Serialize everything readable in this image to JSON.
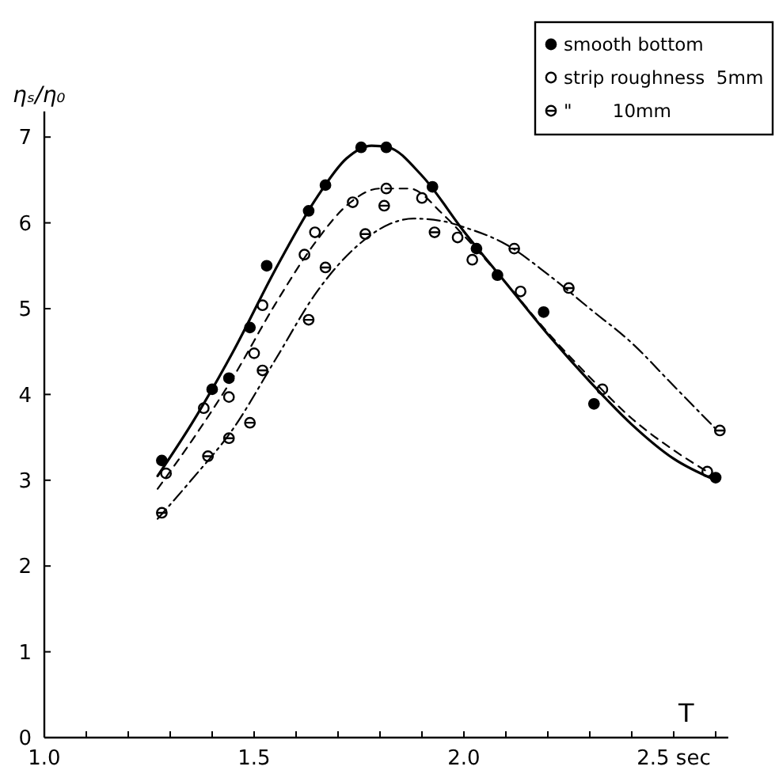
{
  "chart_data": {
    "type": "scatter",
    "ylabel": "ηₛ/η₀",
    "xlabel": "T",
    "xlim": [
      1.0,
      2.63
    ],
    "ylim": [
      0,
      7.3
    ],
    "xticks": [
      {
        "value": 1.0,
        "label": "1.0"
      },
      {
        "value": 1.1,
        "label": null
      },
      {
        "value": 1.2,
        "label": null
      },
      {
        "value": 1.3,
        "label": null
      },
      {
        "value": 1.4,
        "label": null
      },
      {
        "value": 1.5,
        "label": "1.5"
      },
      {
        "value": 1.6,
        "label": null
      },
      {
        "value": 1.7,
        "label": null
      },
      {
        "value": 1.8,
        "label": null
      },
      {
        "value": 1.9,
        "label": null
      },
      {
        "value": 2.0,
        "label": "2.0"
      },
      {
        "value": 2.1,
        "label": null
      },
      {
        "value": 2.2,
        "label": null
      },
      {
        "value": 2.3,
        "label": null
      },
      {
        "value": 2.4,
        "label": null
      },
      {
        "value": 2.5,
        "label": "2.5 sec"
      },
      {
        "value": 2.6,
        "label": null
      }
    ],
    "yticks": [
      0,
      1,
      2,
      3,
      4,
      5,
      6,
      7
    ],
    "legend": "top right",
    "marker": "circle",
    "series": [
      {
        "name": "smooth bottom",
        "color": "#000000",
        "x": [
          1.28,
          1.4,
          1.44,
          1.49,
          1.53,
          1.63,
          1.67,
          1.755,
          1.815,
          1.925,
          2.03,
          2.08,
          2.19,
          2.31,
          2.6
        ],
        "values": [
          3.23,
          4.06,
          4.19,
          4.78,
          5.5,
          6.14,
          6.44,
          6.88,
          6.88,
          6.42,
          5.7,
          5.39,
          4.96,
          3.89,
          3.03
        ]
      },
      {
        "name": "strip roughness  5mm",
        "color": "#000000",
        "x": [
          1.29,
          1.38,
          1.44,
          1.5,
          1.52,
          1.62,
          1.645,
          1.735,
          1.815,
          1.9,
          1.985,
          2.02,
          2.135,
          2.33,
          2.58
        ],
        "values": [
          3.08,
          3.84,
          3.97,
          4.48,
          5.04,
          5.63,
          5.89,
          6.24,
          6.4,
          6.29,
          5.83,
          5.57,
          5.2,
          4.06,
          3.1
        ]
      },
      {
        "name": "\"       10mm",
        "color": "#000000",
        "x": [
          1.28,
          1.39,
          1.44,
          1.49,
          1.52,
          1.63,
          1.67,
          1.765,
          1.81,
          1.93,
          2.12,
          2.25,
          2.61
        ],
        "values": [
          2.62,
          3.28,
          3.49,
          3.67,
          4.28,
          4.87,
          5.48,
          5.87,
          6.2,
          5.89,
          5.7,
          5.24,
          3.58
        ]
      },
      {
        "type": "line",
        "marker": "none",
        "line_style": "solid",
        "color": "#000000",
        "x": [
          1.27,
          1.35,
          1.45,
          1.55,
          1.65,
          1.72,
          1.78,
          1.82,
          1.9,
          2.0,
          2.1,
          2.2,
          2.3,
          2.4,
          2.5,
          2.6
        ],
        "values": [
          3.05,
          3.65,
          4.5,
          5.45,
          6.3,
          6.75,
          6.9,
          6.88,
          6.55,
          5.9,
          5.3,
          4.7,
          4.15,
          3.65,
          3.25,
          3.0
        ]
      },
      {
        "type": "line",
        "marker": "none",
        "line_style": "dashed",
        "color": "#000000",
        "x": [
          1.27,
          1.35,
          1.45,
          1.55,
          1.65,
          1.72,
          1.8,
          1.87,
          1.95,
          2.0,
          2.1,
          2.2,
          2.3,
          2.4,
          2.5,
          2.58
        ],
        "values": [
          2.9,
          3.45,
          4.2,
          5.05,
          5.8,
          6.2,
          6.4,
          6.4,
          6.1,
          5.85,
          5.3,
          4.72,
          4.2,
          3.72,
          3.35,
          3.1
        ]
      },
      {
        "type": "line",
        "marker": "none",
        "line_style": "dotted",
        "color": "#000000",
        "x": [
          1.27,
          1.35,
          1.45,
          1.55,
          1.65,
          1.75,
          1.82,
          1.88,
          1.95,
          2.0,
          2.1,
          2.2,
          2.3,
          2.4,
          2.5,
          2.6
        ],
        "values": [
          2.55,
          3.0,
          3.6,
          4.4,
          5.2,
          5.75,
          5.98,
          6.05,
          6.02,
          5.95,
          5.75,
          5.4,
          5.0,
          4.6,
          4.1,
          3.6
        ]
      }
    ]
  }
}
